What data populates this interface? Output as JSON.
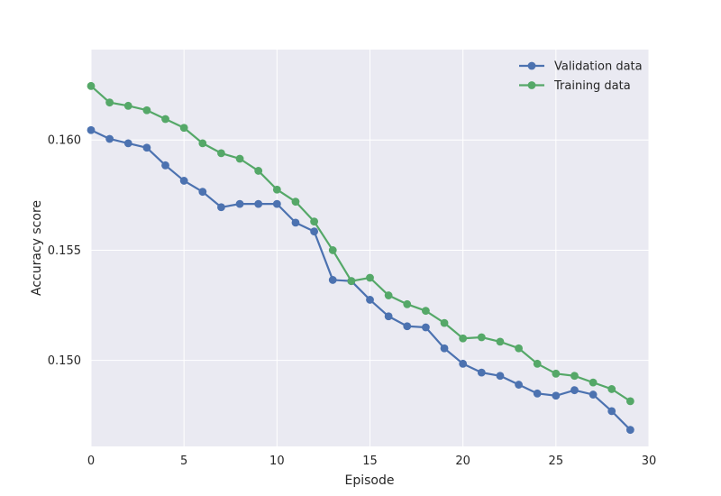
{
  "chart_data": {
    "type": "line",
    "title": "",
    "xlabel": "Episode",
    "ylabel": "Accuracy score",
    "xlim": [
      0,
      30
    ],
    "ylim": [
      0.1461,
      0.1641
    ],
    "xticks": [
      0,
      5,
      10,
      15,
      20,
      25,
      30
    ],
    "yticks": [
      0.15,
      0.155,
      0.16
    ],
    "ytick_labels": [
      "0.150",
      "0.155",
      "0.160"
    ],
    "grid": true,
    "legend_position": "top-right",
    "x": [
      0,
      1,
      2,
      3,
      4,
      5,
      6,
      7,
      8,
      9,
      10,
      11,
      12,
      13,
      14,
      15,
      16,
      17,
      18,
      19,
      20,
      21,
      22,
      23,
      24,
      25,
      26,
      27,
      28,
      29
    ],
    "series": [
      {
        "name": "Validation data",
        "color": "#4c72b0",
        "values": [
          0.16045,
          0.16005,
          0.15985,
          0.15965,
          0.15885,
          0.15815,
          0.15765,
          0.15695,
          0.1571,
          0.1571,
          0.1571,
          0.15625,
          0.15585,
          0.15365,
          0.1536,
          0.15275,
          0.152,
          0.15155,
          0.1515,
          0.15055,
          0.14985,
          0.14945,
          0.1493,
          0.1489,
          0.1485,
          0.1484,
          0.14865,
          0.14845,
          0.1477,
          0.14685
        ]
      },
      {
        "name": "Training data",
        "color": "#55a868",
        "values": [
          0.16245,
          0.1617,
          0.16155,
          0.16135,
          0.16095,
          0.16055,
          0.15985,
          0.1594,
          0.15915,
          0.1586,
          0.15775,
          0.1572,
          0.1563,
          0.155,
          0.1536,
          0.15375,
          0.15295,
          0.15255,
          0.15225,
          0.1517,
          0.151,
          0.15105,
          0.15085,
          0.15055,
          0.14985,
          0.1494,
          0.1493,
          0.149,
          0.1487,
          0.14815
        ]
      }
    ]
  }
}
